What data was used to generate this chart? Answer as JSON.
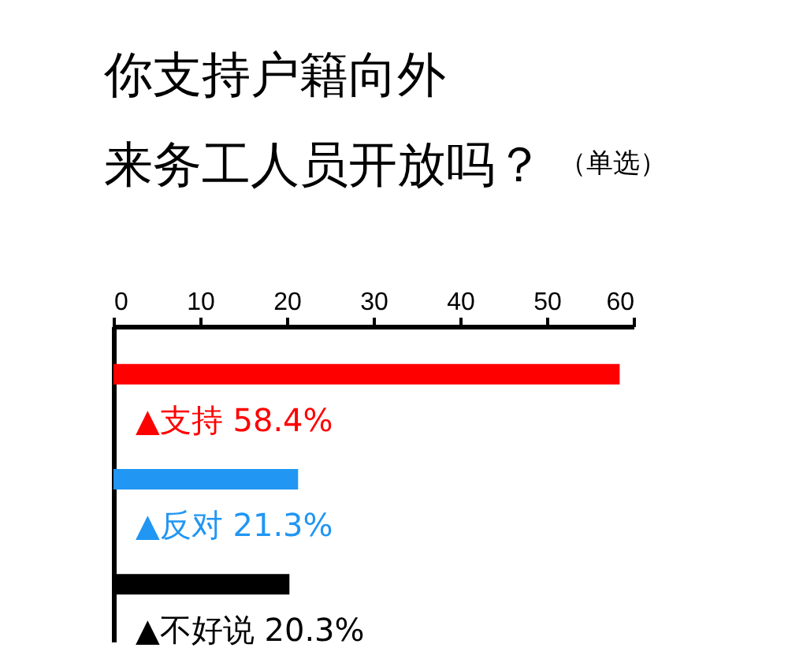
{
  "chart_data": {
    "type": "bar",
    "orientation": "horizontal",
    "title": "你支持户籍向外来务工人员开放吗？",
    "subtitle": "（单选）",
    "categories": [
      "▲支持",
      "▲反对",
      "▲不好说"
    ],
    "values": [
      58.4,
      21.3,
      20.3
    ],
    "colors": [
      "#ff0000",
      "#2196f3",
      "#000000"
    ],
    "value_labels": [
      "58.4%",
      "21.3%",
      "20.3%"
    ],
    "xlim": [
      0,
      60
    ],
    "xticks": [
      0,
      10,
      20,
      30,
      40,
      50,
      60
    ]
  }
}
